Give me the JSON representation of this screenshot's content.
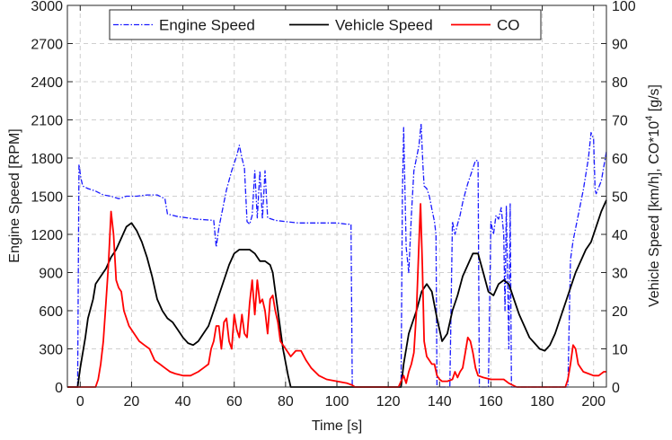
{
  "chart_data": {
    "type": "line",
    "xlabel": "Time [s]",
    "ylabel_left": "Engine Speed [RPM]",
    "ylabel_right_prefix": "Vehicle Speed [km/h], CO*10",
    "ylabel_right_sup": "4",
    "ylabel_right_suffix": " [g/s]",
    "xlim": [
      -5,
      205
    ],
    "ylim_left": [
      0,
      3000
    ],
    "ylim_right": [
      0,
      100
    ],
    "xticks": [
      0,
      20,
      40,
      60,
      80,
      100,
      120,
      140,
      160,
      180,
      200
    ],
    "yticks_left": [
      0,
      300,
      600,
      900,
      1200,
      1500,
      1800,
      2100,
      2400,
      2700,
      3000
    ],
    "yticks_right": [
      0,
      10,
      20,
      30,
      40,
      50,
      60,
      70,
      80,
      90,
      100
    ],
    "grid": true,
    "legend_position": "top-center",
    "series": [
      {
        "name": "Engine Speed",
        "axis": "left",
        "color": "#1a1aff",
        "style": "dash-dot",
        "points": [
          [
            -5,
            0
          ],
          [
            -1,
            0
          ],
          [
            -0.5,
            1750
          ],
          [
            0.3,
            1640
          ],
          [
            1,
            1580
          ],
          [
            3,
            1560
          ],
          [
            6,
            1540
          ],
          [
            9,
            1510
          ],
          [
            12,
            1500
          ],
          [
            15,
            1480
          ],
          [
            18,
            1500
          ],
          [
            22,
            1500
          ],
          [
            26,
            1510
          ],
          [
            30,
            1510
          ],
          [
            33,
            1480
          ],
          [
            34,
            1360
          ],
          [
            38,
            1340
          ],
          [
            45,
            1320
          ],
          [
            52,
            1310
          ],
          [
            53,
            1100
          ],
          [
            54,
            1250
          ],
          [
            55,
            1350
          ],
          [
            57,
            1550
          ],
          [
            59,
            1700
          ],
          [
            61,
            1820
          ],
          [
            62,
            1900
          ],
          [
            63,
            1800
          ],
          [
            64,
            1720
          ],
          [
            65,
            1300
          ],
          [
            66,
            1280
          ],
          [
            67,
            1350
          ],
          [
            68,
            1700
          ],
          [
            69,
            1330
          ],
          [
            70,
            1700
          ],
          [
            71,
            1320
          ],
          [
            72,
            1700
          ],
          [
            73,
            1330
          ],
          [
            76,
            1310
          ],
          [
            80,
            1300
          ],
          [
            85,
            1290
          ],
          [
            90,
            1290
          ],
          [
            95,
            1290
          ],
          [
            100,
            1290
          ],
          [
            104,
            1280
          ],
          [
            105.5,
            1280
          ],
          [
            106,
            20
          ],
          [
            107,
            0
          ],
          [
            125,
            0
          ],
          [
            125.5,
            1500
          ],
          [
            126,
            2040
          ],
          [
            127,
            1100
          ],
          [
            128,
            900
          ],
          [
            129,
            1350
          ],
          [
            130,
            1700
          ],
          [
            131,
            1800
          ],
          [
            132,
            1900
          ],
          [
            132.8,
            2070
          ],
          [
            133.5,
            1750
          ],
          [
            134,
            1580
          ],
          [
            135,
            1560
          ],
          [
            136,
            1500
          ],
          [
            137,
            1400
          ],
          [
            138,
            1300
          ],
          [
            138.6,
            1200
          ],
          [
            139,
            0
          ],
          [
            144,
            0
          ],
          [
            145,
            1300
          ],
          [
            146,
            1200
          ],
          [
            147,
            1280
          ],
          [
            148,
            1350
          ],
          [
            149,
            1450
          ],
          [
            150,
            1530
          ],
          [
            151,
            1600
          ],
          [
            152,
            1660
          ],
          [
            153,
            1720
          ],
          [
            154,
            1780
          ],
          [
            155,
            1780
          ],
          [
            155.5,
            0
          ],
          [
            159,
            0
          ],
          [
            160,
            1300
          ],
          [
            161,
            1200
          ],
          [
            162,
            1350
          ],
          [
            163,
            1320
          ],
          [
            164,
            1410
          ],
          [
            165,
            1200
          ],
          [
            165.5,
            600
          ],
          [
            166,
            1420
          ],
          [
            167,
            300
          ],
          [
            167.5,
            1440
          ],
          [
            168,
            0
          ],
          [
            190,
            0
          ],
          [
            191,
            1000
          ],
          [
            192,
            1150
          ],
          [
            194,
            1350
          ],
          [
            196,
            1550
          ],
          [
            198,
            1800
          ],
          [
            199,
            2000
          ],
          [
            200,
            1950
          ],
          [
            200.6,
            1550
          ],
          [
            201,
            1520
          ],
          [
            203,
            1620
          ],
          [
            205,
            1850
          ]
        ]
      },
      {
        "name": "Vehicle Speed",
        "axis": "right",
        "color": "#000000",
        "style": "solid",
        "points": [
          [
            -5,
            0
          ],
          [
            -1,
            0
          ],
          [
            0,
            5
          ],
          [
            2,
            13
          ],
          [
            3,
            18
          ],
          [
            5,
            23
          ],
          [
            6,
            27
          ],
          [
            8,
            29
          ],
          [
            10,
            31
          ],
          [
            12,
            34
          ],
          [
            14,
            36
          ],
          [
            16,
            39
          ],
          [
            18,
            42
          ],
          [
            20,
            43
          ],
          [
            22,
            41
          ],
          [
            24,
            38
          ],
          [
            26,
            34
          ],
          [
            28,
            29
          ],
          [
            30,
            23
          ],
          [
            32,
            20
          ],
          [
            34,
            18
          ],
          [
            36,
            17
          ],
          [
            38,
            15
          ],
          [
            40,
            13
          ],
          [
            42,
            11.5
          ],
          [
            44,
            11
          ],
          [
            46,
            12
          ],
          [
            48,
            14
          ],
          [
            50,
            16
          ],
          [
            52,
            20
          ],
          [
            54,
            24
          ],
          [
            56,
            28
          ],
          [
            58,
            32
          ],
          [
            60,
            35
          ],
          [
            62,
            36
          ],
          [
            64,
            36
          ],
          [
            66,
            36
          ],
          [
            68,
            35
          ],
          [
            70,
            33
          ],
          [
            72,
            33
          ],
          [
            74,
            32
          ],
          [
            75,
            30
          ],
          [
            77,
            20
          ],
          [
            79,
            10
          ],
          [
            81,
            3
          ],
          [
            82,
            0
          ],
          [
            125,
            0
          ],
          [
            126,
            6
          ],
          [
            128,
            14
          ],
          [
            130,
            18
          ],
          [
            131,
            20
          ],
          [
            133,
            25
          ],
          [
            135,
            27
          ],
          [
            137,
            25
          ],
          [
            139,
            18
          ],
          [
            141,
            12
          ],
          [
            143,
            14
          ],
          [
            145,
            20
          ],
          [
            147,
            24
          ],
          [
            149,
            29
          ],
          [
            151,
            32
          ],
          [
            153,
            35
          ],
          [
            155,
            35
          ],
          [
            157,
            30
          ],
          [
            159,
            25
          ],
          [
            161,
            24
          ],
          [
            163,
            27
          ],
          [
            165,
            28
          ],
          [
            167,
            27
          ],
          [
            169,
            23
          ],
          [
            171,
            19
          ],
          [
            173,
            16
          ],
          [
            175,
            13
          ],
          [
            177,
            11.5
          ],
          [
            179,
            10
          ],
          [
            181,
            9.5
          ],
          [
            183,
            11
          ],
          [
            185,
            14
          ],
          [
            187,
            18
          ],
          [
            189,
            22
          ],
          [
            191,
            26
          ],
          [
            193,
            30
          ],
          [
            195,
            33
          ],
          [
            197,
            36
          ],
          [
            199,
            38
          ],
          [
            201,
            42
          ],
          [
            203,
            46
          ],
          [
            205,
            49
          ]
        ]
      },
      {
        "name": "CO",
        "axis": "right",
        "color": "#ff0000",
        "style": "solid",
        "points": [
          [
            -5,
            0
          ],
          [
            6,
            0
          ],
          [
            7,
            2
          ],
          [
            8,
            6
          ],
          [
            9,
            12
          ],
          [
            10,
            22
          ],
          [
            11,
            32
          ],
          [
            12,
            46
          ],
          [
            13,
            40
          ],
          [
            14,
            28
          ],
          [
            15,
            26
          ],
          [
            16,
            25
          ],
          [
            17,
            20
          ],
          [
            19,
            16
          ],
          [
            21,
            14
          ],
          [
            23,
            12
          ],
          [
            25,
            11
          ],
          [
            27,
            10
          ],
          [
            29,
            7
          ],
          [
            31,
            6
          ],
          [
            33,
            5
          ],
          [
            35,
            4
          ],
          [
            37,
            3.5
          ],
          [
            40,
            3
          ],
          [
            43,
            3
          ],
          [
            46,
            4
          ],
          [
            48,
            5
          ],
          [
            50,
            6
          ],
          [
            51,
            10
          ],
          [
            52,
            12
          ],
          [
            53,
            16
          ],
          [
            54,
            16
          ],
          [
            55,
            10
          ],
          [
            56,
            17
          ],
          [
            57,
            18
          ],
          [
            58,
            12
          ],
          [
            59,
            10
          ],
          [
            60,
            19
          ],
          [
            61,
            15
          ],
          [
            62,
            13
          ],
          [
            63,
            19
          ],
          [
            64,
            14
          ],
          [
            65,
            13
          ],
          [
            66,
            22
          ],
          [
            67,
            28
          ],
          [
            68,
            19
          ],
          [
            69,
            28
          ],
          [
            70,
            22
          ],
          [
            71,
            23
          ],
          [
            72,
            20
          ],
          [
            73,
            14
          ],
          [
            74,
            23
          ],
          [
            75,
            24
          ],
          [
            76,
            20
          ],
          [
            77,
            17
          ],
          [
            78,
            12
          ],
          [
            80,
            10
          ],
          [
            82,
            8
          ],
          [
            84,
            9.5
          ],
          [
            86,
            9.5
          ],
          [
            88,
            7
          ],
          [
            90,
            5
          ],
          [
            93,
            3
          ],
          [
            96,
            2
          ],
          [
            100,
            1.5
          ],
          [
            104,
            1
          ],
          [
            106,
            0.5
          ],
          [
            107,
            0
          ],
          [
            124,
            0
          ],
          [
            125,
            1.5
          ],
          [
            126,
            3
          ],
          [
            127,
            1
          ],
          [
            128,
            4
          ],
          [
            129,
            6
          ],
          [
            130,
            9
          ],
          [
            131,
            20
          ],
          [
            132,
            38
          ],
          [
            132.6,
            48
          ],
          [
            133.3,
            32
          ],
          [
            134,
            12
          ],
          [
            135,
            8
          ],
          [
            136,
            7
          ],
          [
            137,
            6
          ],
          [
            138,
            6
          ],
          [
            139,
            3
          ],
          [
            140,
            2
          ],
          [
            141,
            1.5
          ],
          [
            143,
            1.5
          ],
          [
            145,
            2
          ],
          [
            146,
            4
          ],
          [
            147,
            2.5
          ],
          [
            148,
            4
          ],
          [
            149,
            5
          ],
          [
            150,
            9
          ],
          [
            151,
            13
          ],
          [
            152,
            12
          ],
          [
            153,
            9
          ],
          [
            154,
            5
          ],
          [
            155,
            3
          ],
          [
            157,
            2.5
          ],
          [
            160,
            2
          ],
          [
            165,
            2
          ],
          [
            167,
            1
          ],
          [
            170,
            0
          ],
          [
            189,
            0
          ],
          [
            190,
            2
          ],
          [
            191,
            6
          ],
          [
            192,
            11
          ],
          [
            193,
            10
          ],
          [
            194,
            6
          ],
          [
            195,
            5
          ],
          [
            196,
            4
          ],
          [
            198,
            3.5
          ],
          [
            200,
            3
          ],
          [
            202,
            3
          ],
          [
            204,
            4
          ],
          [
            205,
            4
          ]
        ]
      }
    ]
  }
}
